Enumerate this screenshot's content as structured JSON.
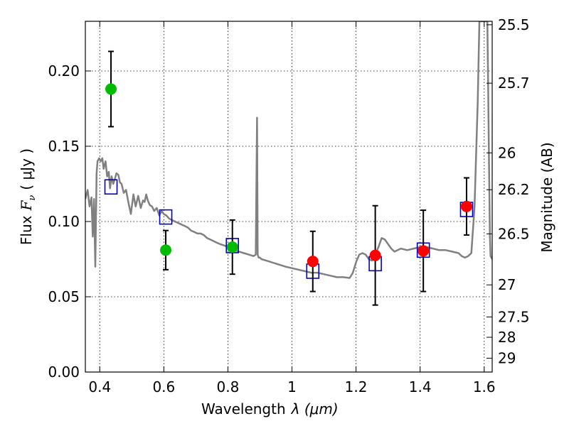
{
  "chart_data": {
    "type": "scatter",
    "xlabel_text": "Wavelength",
    "xlabel_math": "λ (μm)",
    "ylabel_text": "Flux",
    "ylabel_math": "F",
    "ylabel_sub": "ν",
    "ylabel_unit": "( μJy )",
    "y2label": "Magnitude (AB)",
    "xlim": [
      0.355,
      1.625
    ],
    "ylim": [
      0.0,
      0.233
    ],
    "grid": true,
    "xticks": [
      0.4,
      0.6,
      0.8,
      1.0,
      1.2,
      1.4,
      1.6
    ],
    "xtick_labels": [
      "0.4",
      "0.6",
      "0.8",
      "1",
      "1.2",
      "1.4",
      "1.6"
    ],
    "yticks": [
      0.0,
      0.05,
      0.1,
      0.15,
      0.2
    ],
    "ytick_labels": [
      "0.00",
      "0.05",
      "0.10",
      "0.15",
      "0.20"
    ],
    "y2ticks": [
      {
        "label": "25.5",
        "flux": 0.2307
      },
      {
        "label": "25.7",
        "flux": 0.1919
      },
      {
        "label": "26",
        "flux": 0.1456
      },
      {
        "label": "26.2",
        "flux": 0.1211
      },
      {
        "label": "26.5",
        "flux": 0.0918
      },
      {
        "label": "27",
        "flux": 0.0579
      },
      {
        "label": "27.5",
        "flux": 0.0366
      },
      {
        "label": "28",
        "flux": 0.0231
      },
      {
        "label": "29",
        "flux": 0.0092
      }
    ],
    "series": [
      {
        "name": "green points",
        "marker": "circle",
        "color": "#00bb00",
        "points": [
          {
            "x": 0.435,
            "y": 0.188,
            "err": 0.025
          },
          {
            "x": 0.606,
            "y": 0.081,
            "err": 0.013
          },
          {
            "x": 0.814,
            "y": 0.083,
            "err": 0.018
          }
        ]
      },
      {
        "name": "red points",
        "marker": "circle",
        "color": "#ff0000",
        "points": [
          {
            "x": 1.065,
            "y": 0.0735,
            "err": 0.02
          },
          {
            "x": 1.26,
            "y": 0.0775,
            "err": 0.033
          },
          {
            "x": 1.41,
            "y": 0.0805,
            "err": 0.027
          },
          {
            "x": 1.545,
            "y": 0.11,
            "err": 0.019
          }
        ]
      },
      {
        "name": "model fluxes",
        "marker": "square",
        "color": "#0000cc",
        "points": [
          {
            "x": 0.435,
            "y": 0.123
          },
          {
            "x": 0.606,
            "y": 0.103
          },
          {
            "x": 0.814,
            "y": 0.084
          },
          {
            "x": 1.065,
            "y": 0.067
          },
          {
            "x": 1.26,
            "y": 0.072
          },
          {
            "x": 1.41,
            "y": 0.081
          },
          {
            "x": 1.545,
            "y": 0.108
          }
        ]
      }
    ],
    "spectrum": {
      "name": "template spectrum",
      "color": "#808080",
      "x": [
        0.355,
        0.362,
        0.368,
        0.374,
        0.378,
        0.382,
        0.386,
        0.39,
        0.393,
        0.398,
        0.403,
        0.408,
        0.412,
        0.418,
        0.423,
        0.428,
        0.432,
        0.437,
        0.442,
        0.447,
        0.452,
        0.458,
        0.463,
        0.468,
        0.475,
        0.482,
        0.49,
        0.497,
        0.505,
        0.512,
        0.52,
        0.528,
        0.535,
        0.54,
        0.545,
        0.55,
        0.556,
        0.563,
        0.57,
        0.578,
        0.586,
        0.593,
        0.6,
        0.608,
        0.616,
        0.625,
        0.635,
        0.645,
        0.655,
        0.665,
        0.675,
        0.685,
        0.695,
        0.705,
        0.715,
        0.725,
        0.735,
        0.745,
        0.755,
        0.765,
        0.775,
        0.79,
        0.805,
        0.82,
        0.835,
        0.85,
        0.865,
        0.88,
        0.887,
        0.891,
        0.893,
        0.896,
        0.9,
        0.905,
        0.92,
        0.95,
        0.98,
        1.0,
        1.02,
        1.04,
        1.06,
        1.08,
        1.1,
        1.12,
        1.14,
        1.16,
        1.18,
        1.19,
        1.2,
        1.21,
        1.22,
        1.23,
        1.24,
        1.25,
        1.26,
        1.27,
        1.28,
        1.29,
        1.3,
        1.31,
        1.32,
        1.33,
        1.34,
        1.36,
        1.38,
        1.4,
        1.42,
        1.44,
        1.46,
        1.48,
        1.5,
        1.52,
        1.53,
        1.54,
        1.55,
        1.56,
        1.57,
        1.58,
        1.585,
        1.59,
        1.6,
        1.61,
        1.612,
        1.615,
        1.618,
        1.62,
        1.625
      ],
      "y": [
        0.115,
        0.121,
        0.11,
        0.116,
        0.09,
        0.115,
        0.07,
        0.132,
        0.14,
        0.142,
        0.14,
        0.142,
        0.135,
        0.14,
        0.13,
        0.133,
        0.122,
        0.13,
        0.125,
        0.128,
        0.132,
        0.131,
        0.126,
        0.125,
        0.119,
        0.121,
        0.112,
        0.105,
        0.118,
        0.11,
        0.117,
        0.109,
        0.114,
        0.113,
        0.118,
        0.114,
        0.111,
        0.11,
        0.107,
        0.109,
        0.104,
        0.107,
        0.105,
        0.104,
        0.102,
        0.101,
        0.1,
        0.099,
        0.098,
        0.097,
        0.096,
        0.094,
        0.093,
        0.092,
        0.092,
        0.091,
        0.089,
        0.088,
        0.087,
        0.086,
        0.085,
        0.084,
        0.082,
        0.081,
        0.08,
        0.079,
        0.078,
        0.077,
        0.078,
        0.169,
        0.078,
        0.076,
        0.076,
        0.075,
        0.074,
        0.072,
        0.07,
        0.069,
        0.068,
        0.067,
        0.066,
        0.066,
        0.065,
        0.064,
        0.063,
        0.063,
        0.0625,
        0.066,
        0.073,
        0.078,
        0.079,
        0.078,
        0.075,
        0.074,
        0.078,
        0.083,
        0.089,
        0.088,
        0.085,
        0.082,
        0.08,
        0.081,
        0.082,
        0.081,
        0.082,
        0.083,
        0.083,
        0.082,
        0.081,
        0.081,
        0.08,
        0.079,
        0.077,
        0.076,
        0.077,
        0.079,
        0.11,
        0.18,
        0.233,
        0.233,
        0.233,
        0.233,
        0.2,
        0.14,
        0.09,
        0.077,
        0.075
      ]
    }
  }
}
